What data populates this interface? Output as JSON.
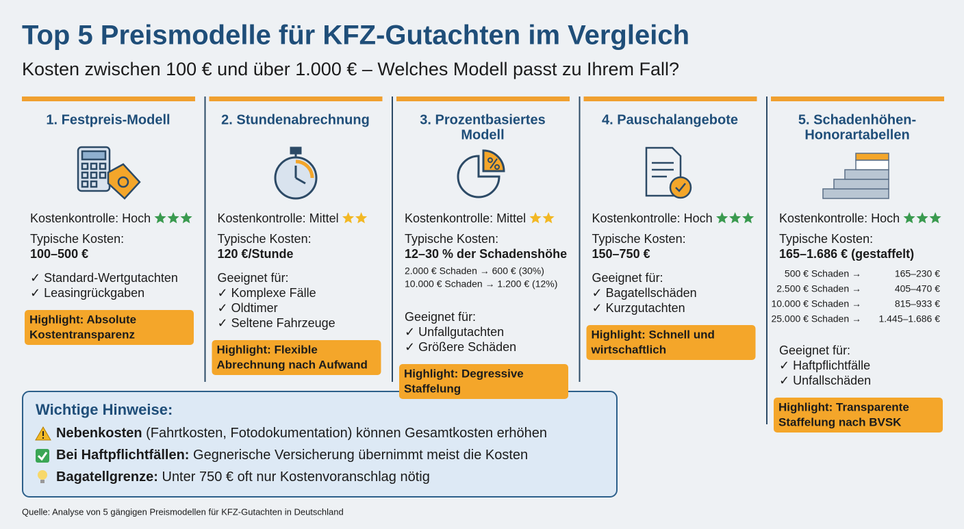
{
  "header": {
    "title": "Top 5 Preismodelle für KFZ-Gutachten im Vergleich",
    "subtitle": "Kosten zwischen 100 € und über 1.000 € – Welches Modell passt zu Ihrem Fall?"
  },
  "models": [
    {
      "heading": [
        "1. Festpreis-Modell"
      ],
      "control": "Kostenkontrolle: Hoch",
      "rating": 3,
      "star_color": "#3a9a4f",
      "costs_label": "Typische Kosten:",
      "costs": "100–500 €",
      "suitable": [
        "✓ Standard-Wertgutachten",
        "✓ Leasingrückgaben"
      ],
      "highlight": [
        "Highlight: Absolute",
        "Kostentransparenz"
      ]
    },
    {
      "heading": [
        "2. Stundenabrechnung"
      ],
      "control": "Kostenkontrolle: Mittel",
      "rating": 2,
      "star_color": "#f2b824",
      "costs_label": "Typische Kosten:",
      "costs": "120 €/Stunde",
      "suitable_label": "Geeignet für:",
      "suitable": [
        "✓ Komplexe Fälle",
        "✓ Oldtimer",
        "✓ Seltene Fahrzeuge"
      ],
      "highlight": [
        "Highlight: Flexible",
        "Abrechnung nach Aufwand"
      ]
    },
    {
      "heading": [
        "3. Prozentbasiertes",
        "Modell"
      ],
      "control": "Kostenkontrolle: Mittel",
      "rating": 2,
      "star_color": "#f2b824",
      "costs_label": "Typische Kosten:",
      "costs": "12–30 % der Schadenshöhe",
      "examples": [
        "2.000 € Schaden  →  600 € (30%)",
        "10.000 € Schaden → 1.200 € (12%)"
      ],
      "suitable_label": "Geeignet für:",
      "suitable": [
        "✓ Unfallgutachten",
        "✓ Größere Schäden"
      ],
      "highlight": [
        "Highlight: Degressive",
        "Staffelung"
      ]
    },
    {
      "heading": [
        "4. Pauschalangebote"
      ],
      "control": "Kostenkontrolle: Hoch",
      "rating": 3,
      "star_color": "#3a9a4f",
      "costs_label": "Typische Kosten:",
      "costs": "150–750 €",
      "suitable_label": "Geeignet für:",
      "suitable": [
        "✓ Bagatellschäden",
        "✓ Kurzgutachten"
      ],
      "highlight": [
        "Highlight: Schnell und",
        "wirtschaftlich"
      ]
    },
    {
      "heading": [
        "5. Schadenhöhen-",
        "Honorartabellen"
      ],
      "control": "Kostenkontrolle: Hoch",
      "rating": 3,
      "star_color": "#3a9a4f",
      "costs_label": "Typische Kosten:",
      "costs": "165–1.686 € (gestaffelt)",
      "table": [
        [
          "500 € Schaden →",
          "165–230 €"
        ],
        [
          "2.500 € Schaden →",
          "405–470 €"
        ],
        [
          "10.000 € Schaden →",
          "815–933 €"
        ],
        [
          "25.000 € Schaden →",
          "1.445–1.686 €"
        ]
      ],
      "suitable_label": "Geeignet für:",
      "suitable": [
        "✓ Haftpflichtfälle",
        "✓ Unfallschäden"
      ],
      "highlight": [
        "Highlight: Transparente",
        "Staffelung nach BVSK"
      ]
    }
  ],
  "notes": {
    "title": "Wichtige Hinweise:",
    "items": [
      {
        "bold": "Nebenkosten",
        "text": " (Fahrtkosten, Fotodokumentation) können Gesamtkosten erhöhen"
      },
      {
        "bold": "Bei Haftpflichtfällen:",
        "text": " Gegnerische Versicherung übernimmt meist die Kosten"
      },
      {
        "bold": "Bagatellgrenze:",
        "text": " Unter 750 € oft nur Kostenvoranschlag nötig"
      }
    ]
  },
  "source": "Quelle: Analyse von 5 gängigen Preismodellen für KFZ-Gutachten in Deutschland"
}
